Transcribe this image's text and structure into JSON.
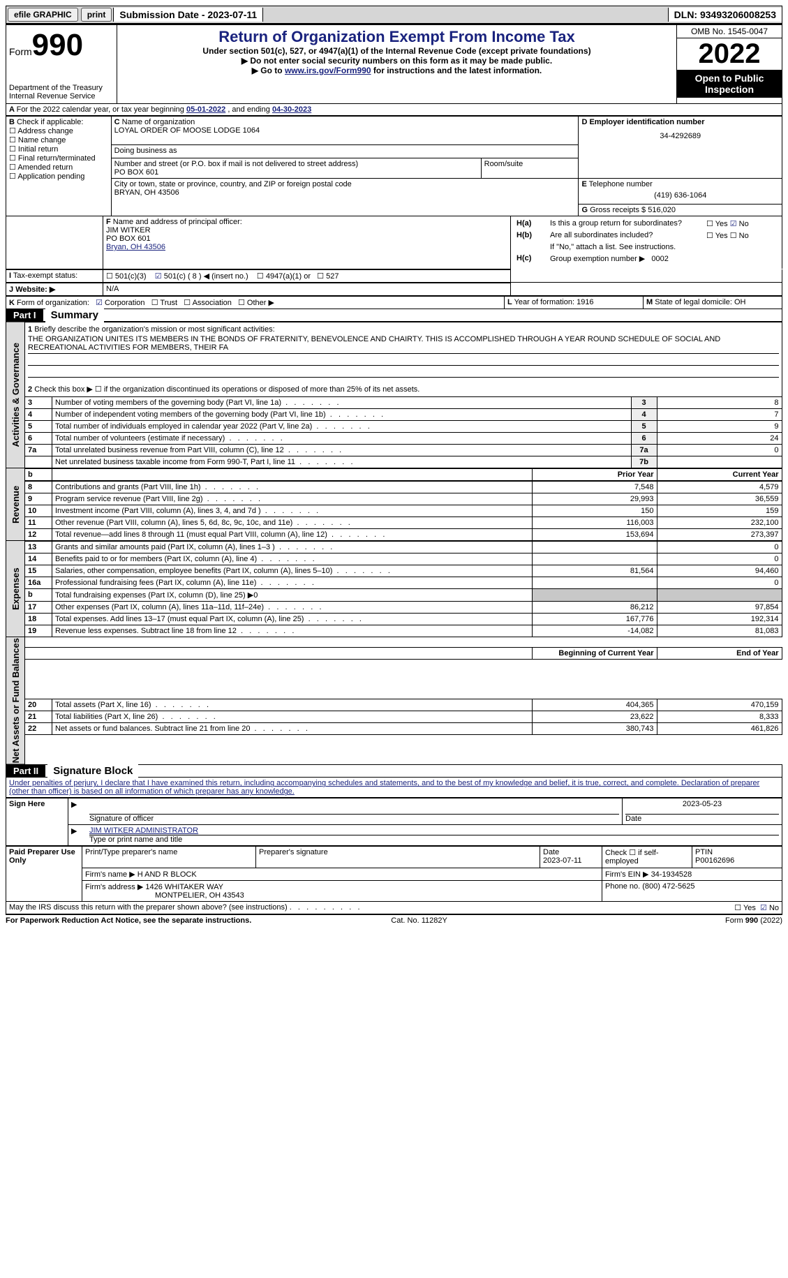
{
  "topbar": {
    "efile": "efile GRAPHIC",
    "print": "print",
    "submission": "Submission Date - 2023-07-11",
    "dln": "DLN: 93493206008253"
  },
  "header": {
    "form_label": "Form",
    "form_number": "990",
    "dept": "Department of the Treasury",
    "irs": "Internal Revenue Service",
    "title": "Return of Organization Exempt From Income Tax",
    "subtitle": "Under section 501(c), 527, or 4947(a)(1) of the Internal Revenue Code (except private foundations)",
    "note1": "Do not enter social security numbers on this form as it may be made public.",
    "note2_pre": "Go to ",
    "note2_link": "www.irs.gov/Form990",
    "note2_post": " for instructions and the latest information.",
    "omb": "OMB No. 1545-0047",
    "year": "2022",
    "open": "Open to Public Inspection"
  },
  "A": {
    "text": "For the 2022 calendar year, or tax year beginning ",
    "begin": "05-01-2022",
    "mid": " , and ending ",
    "end": "04-30-2023"
  },
  "B": {
    "label": "Check if applicable:",
    "opts": [
      "Address change",
      "Name change",
      "Initial return",
      "Final return/terminated",
      "Amended return",
      "Application pending"
    ]
  },
  "C": {
    "name_label": "Name of organization",
    "name": "LOYAL ORDER OF MOOSE LODGE 1064",
    "dba_label": "Doing business as",
    "dba": "",
    "street_label": "Number and street (or P.O. box if mail is not delivered to street address)",
    "room_label": "Room/suite",
    "street": "PO BOX 601",
    "city_label": "City or town, state or province, country, and ZIP or foreign postal code",
    "city": "BRYAN, OH  43506"
  },
  "D": {
    "label": "Employer identification number",
    "value": "34-4292689"
  },
  "E": {
    "label": "Telephone number",
    "value": "(419) 636-1064"
  },
  "G": {
    "label": "Gross receipts $",
    "value": "516,020"
  },
  "F": {
    "label": "Name and address of principal officer:",
    "name": "JIM WITKER",
    "addr1": "PO BOX 601",
    "addr2": "Bryan, OH  43506"
  },
  "H": {
    "a": "Is this a group return for subordinates?",
    "b": "Are all subordinates included?",
    "note": "If \"No,\" attach a list. See instructions.",
    "c": "Group exemption number ▶",
    "c_val": "0002",
    "yes": "Yes",
    "no": "No"
  },
  "I": {
    "label": "Tax-exempt status:",
    "o1": "501(c)(3)",
    "o2": "501(c) (",
    "o2v": "8",
    "o2post": ") ◀ (insert no.)",
    "o3": "4947(a)(1) or",
    "o4": "527"
  },
  "J": {
    "label": "Website: ▶",
    "value": "N/A"
  },
  "K": {
    "label": "Form of organization:",
    "opts": [
      "Corporation",
      "Trust",
      "Association",
      "Other ▶"
    ]
  },
  "L": {
    "label": "Year of formation:",
    "value": "1916"
  },
  "M": {
    "label": "State of legal domicile:",
    "value": "OH"
  },
  "part1": {
    "title_part": "Part I",
    "title": "Summary",
    "tabs": [
      "Activities & Governance",
      "Revenue",
      "Expenses",
      "Net Assets or Fund Balances"
    ],
    "q1": "Briefly describe the organization's mission or most significant activities:",
    "q1v": "THE ORGANIZATION UNITES ITS MEMBERS IN THE BONDS OF FRATERNITY, BENEVOLENCE AND CHAIRTY. THIS IS ACCOMPLISHED THROUGH A YEAR ROUND SCHEDULE OF SOCIAL AND RECREATIONAL ACTIVITIES FOR MEMBERS, THEIR FA",
    "q2": "Check this box ▶ ☐ if the organization discontinued its operations or disposed of more than 25% of its net assets.",
    "rowsA": [
      {
        "n": "3",
        "d": "Number of voting members of the governing body (Part VI, line 1a)",
        "l": "3",
        "v": "8"
      },
      {
        "n": "4",
        "d": "Number of independent voting members of the governing body (Part VI, line 1b)",
        "l": "4",
        "v": "7"
      },
      {
        "n": "5",
        "d": "Total number of individuals employed in calendar year 2022 (Part V, line 2a)",
        "l": "5",
        "v": "9"
      },
      {
        "n": "6",
        "d": "Total number of volunteers (estimate if necessary)",
        "l": "6",
        "v": "24"
      },
      {
        "n": "7a",
        "d": "Total unrelated business revenue from Part VIII, column (C), line 12",
        "l": "7a",
        "v": "0"
      },
      {
        "n": "",
        "d": "Net unrelated business taxable income from Form 990-T, Part I, line 11",
        "l": "7b",
        "v": ""
      }
    ],
    "hdrPrior": "Prior Year",
    "hdrCurr": "Current Year",
    "rowsR": [
      {
        "n": "8",
        "d": "Contributions and grants (Part VIII, line 1h)",
        "p": "7,548",
        "c": "4,579"
      },
      {
        "n": "9",
        "d": "Program service revenue (Part VIII, line 2g)",
        "p": "29,993",
        "c": "36,559"
      },
      {
        "n": "10",
        "d": "Investment income (Part VIII, column (A), lines 3, 4, and 7d )",
        "p": "150",
        "c": "159"
      },
      {
        "n": "11",
        "d": "Other revenue (Part VIII, column (A), lines 5, 6d, 8c, 9c, 10c, and 11e)",
        "p": "116,003",
        "c": "232,100"
      },
      {
        "n": "12",
        "d": "Total revenue—add lines 8 through 11 (must equal Part VIII, column (A), line 12)",
        "p": "153,694",
        "c": "273,397"
      }
    ],
    "rowsE": [
      {
        "n": "13",
        "d": "Grants and similar amounts paid (Part IX, column (A), lines 1–3 )",
        "p": "",
        "c": "0"
      },
      {
        "n": "14",
        "d": "Benefits paid to or for members (Part IX, column (A), line 4)",
        "p": "",
        "c": "0"
      },
      {
        "n": "15",
        "d": "Salaries, other compensation, employee benefits (Part IX, column (A), lines 5–10)",
        "p": "81,564",
        "c": "94,460"
      },
      {
        "n": "16a",
        "d": "Professional fundraising fees (Part IX, column (A), line 11e)",
        "p": "",
        "c": "0"
      },
      {
        "n": "b",
        "d": "Total fundraising expenses (Part IX, column (D), line 25) ▶0",
        "p": "shade",
        "c": "shade"
      },
      {
        "n": "17",
        "d": "Other expenses (Part IX, column (A), lines 11a–11d, 11f–24e)",
        "p": "86,212",
        "c": "97,854"
      },
      {
        "n": "18",
        "d": "Total expenses. Add lines 13–17 (must equal Part IX, column (A), line 25)",
        "p": "167,776",
        "c": "192,314"
      },
      {
        "n": "19",
        "d": "Revenue less expenses. Subtract line 18 from line 12",
        "p": "-14,082",
        "c": "81,083"
      }
    ],
    "hdrBeg": "Beginning of Current Year",
    "hdrEnd": "End of Year",
    "rowsN": [
      {
        "n": "20",
        "d": "Total assets (Part X, line 16)",
        "p": "404,365",
        "c": "470,159"
      },
      {
        "n": "21",
        "d": "Total liabilities (Part X, line 26)",
        "p": "23,622",
        "c": "8,333"
      },
      {
        "n": "22",
        "d": "Net assets or fund balances. Subtract line 21 from line 20",
        "p": "380,743",
        "c": "461,826"
      }
    ]
  },
  "part2": {
    "title_part": "Part II",
    "title": "Signature Block",
    "decl": "Under penalties of perjury, I declare that I have examined this return, including accompanying schedules and statements, and to the best of my knowledge and belief, it is true, correct, and complete. Declaration of preparer (other than officer) is based on all information of which preparer has any knowledge.",
    "sign_here": "Sign Here",
    "sig_officer": "Signature of officer",
    "sig_date": "2023-05-23",
    "date_lbl": "Date",
    "officer_name": "JIM WITKER  ADMINISTRATOR",
    "type_name": "Type or print name and title",
    "paid": "Paid Preparer Use Only",
    "pp_name_lbl": "Print/Type preparer's name",
    "pp_sig_lbl": "Preparer's signature",
    "pp_date_lbl": "Date",
    "pp_date": "2023-07-11",
    "pp_check": "Check ☐ if self-employed",
    "ptin_lbl": "PTIN",
    "ptin": "P00162696",
    "firm_name_lbl": "Firm's name    ▶",
    "firm_name": "H AND R BLOCK",
    "firm_ein_lbl": "Firm's EIN ▶",
    "firm_ein": "34-1934528",
    "firm_addr_lbl": "Firm's address ▶",
    "firm_addr1": "1426 WHITAKER WAY",
    "firm_addr2": "MONTPELIER, OH  43543",
    "phone_lbl": "Phone no.",
    "phone": "(800) 472-5625",
    "discuss": "May the IRS discuss this return with the preparer shown above? (see instructions)"
  },
  "footer": {
    "left": "For Paperwork Reduction Act Notice, see the separate instructions.",
    "mid": "Cat. No. 11282Y",
    "right": "Form 990 (2022)"
  }
}
